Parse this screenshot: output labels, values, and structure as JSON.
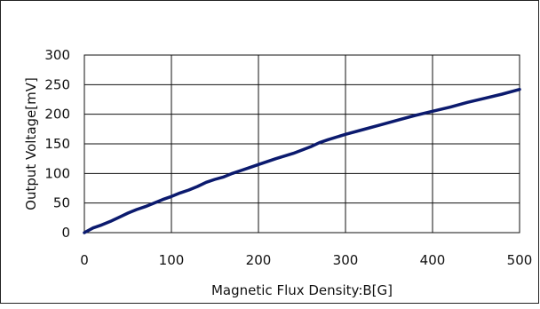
{
  "chart_data": {
    "type": "line",
    "xlabel": "Magnetic Flux Density:B[G]",
    "ylabel": "Output Voltage[mV]",
    "xlim": [
      0,
      500
    ],
    "ylim": [
      0,
      300
    ],
    "x_ticks": [
      "0",
      "100",
      "200",
      "300",
      "400",
      "500"
    ],
    "y_ticks": [
      "0",
      "50",
      "100",
      "150",
      "200",
      "250",
      "300"
    ],
    "grid": true,
    "legend": "none",
    "series": [
      {
        "color": "#0b1a6e",
        "x": [
          0,
          10,
          20,
          30,
          40,
          50,
          60,
          70,
          80,
          90,
          100,
          110,
          120,
          130,
          140,
          150,
          160,
          170,
          180,
          190,
          200,
          220,
          240,
          260,
          270,
          280,
          300,
          320,
          340,
          360,
          380,
          400,
          420,
          440,
          460,
          480,
          500
        ],
        "y": [
          0,
          8,
          13,
          19,
          26,
          33,
          39,
          44,
          50,
          56,
          61,
          67,
          72,
          78,
          85,
          90,
          94,
          100,
          105,
          110,
          115,
          125,
          134,
          145,
          152,
          157,
          166,
          174,
          182,
          190,
          198,
          205,
          212,
          220,
          227,
          234,
          242
        ]
      }
    ]
  }
}
